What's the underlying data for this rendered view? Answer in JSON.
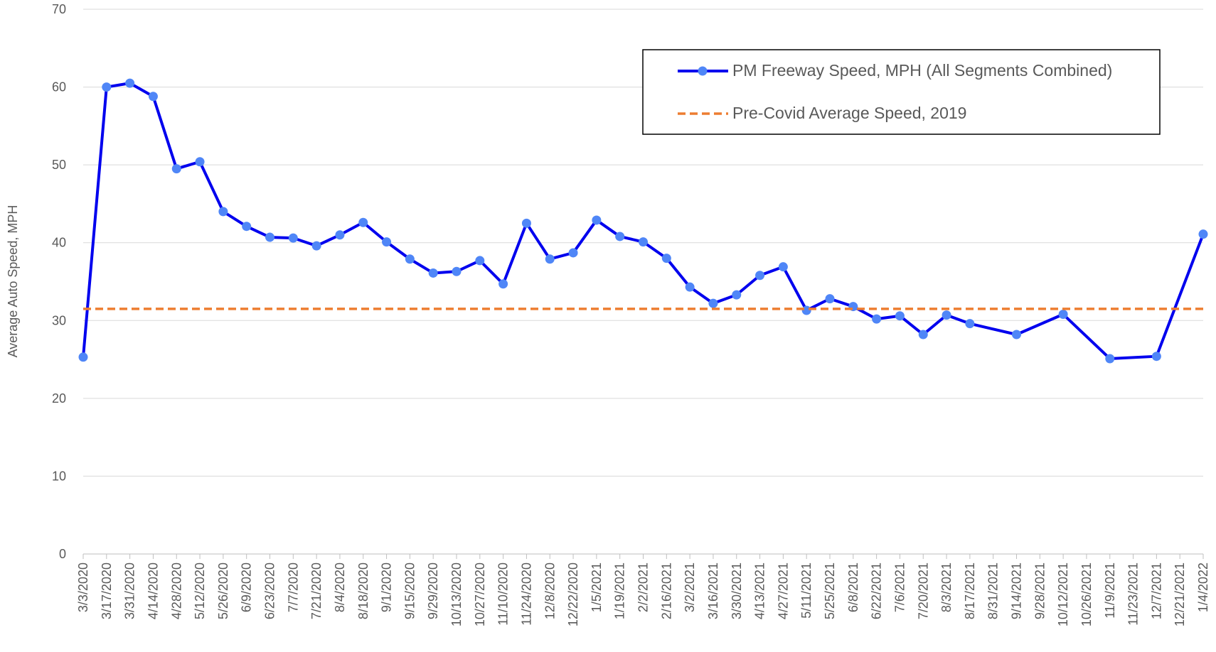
{
  "chart_data": {
    "type": "line",
    "y_label": "Average Auto Speed, MPH",
    "categories": [
      "3/3/2020",
      "3/17/2020",
      "3/31/2020",
      "4/14/2020",
      "4/28/2020",
      "5/12/2020",
      "5/26/2020",
      "6/9/2020",
      "6/23/2020",
      "7/7/2020",
      "7/21/2020",
      "8/4/2020",
      "8/18/2020",
      "9/1/2020",
      "9/15/2020",
      "9/29/2020",
      "10/13/2020",
      "10/27/2020",
      "11/10/2020",
      "11/24/2020",
      "12/8/2020",
      "12/22/2020",
      "1/5/2021",
      "1/19/2021",
      "2/2/2021",
      "2/16/2021",
      "3/2/2021",
      "3/16/2021",
      "3/30/2021",
      "4/13/2021",
      "4/27/2021",
      "5/11/2021",
      "5/25/2021",
      "6/8/2021",
      "6/22/2021",
      "7/6/2021",
      "7/20/2021",
      "8/3/2021",
      "8/17/2021",
      "8/31/2021",
      "9/14/2021",
      "9/28/2021",
      "10/12/2021",
      "10/26/2021",
      "11/9/2021",
      "11/23/2021",
      "12/7/2021",
      "12/21/2021",
      "1/4/2022"
    ],
    "series": [
      {
        "name": "PM Freeway Speed, MPH (All Segments Combined)",
        "color": "#0000ee",
        "marker_color": "#4f86f7",
        "values": [
          25.3,
          60,
          60.5,
          58.8,
          49.5,
          50.4,
          44,
          42.1,
          40.7,
          40.6,
          39.6,
          41,
          42.6,
          40.1,
          37.9,
          36.1,
          36.3,
          37.7,
          34.7,
          42.5,
          37.9,
          38.7,
          42.9,
          40.8,
          40.1,
          38,
          34.3,
          32.2,
          33.3,
          35.8,
          36.9,
          31.3,
          32.8,
          31.8,
          30.2,
          30.6,
          28.2,
          30.7,
          29.6,
          null,
          28.2,
          null,
          30.8,
          null,
          25.1,
          null,
          25.4,
          null,
          41.1
        ]
      },
      {
        "name": "Pre-Covid Average Speed, 2019",
        "color": "#ed7d31",
        "constant": 31.5,
        "dashed": true
      }
    ],
    "ylim": [
      0,
      70
    ],
    "yticks": [
      0,
      10,
      20,
      30,
      40,
      50,
      60,
      70
    ],
    "grid": true,
    "legend": "top-right"
  }
}
